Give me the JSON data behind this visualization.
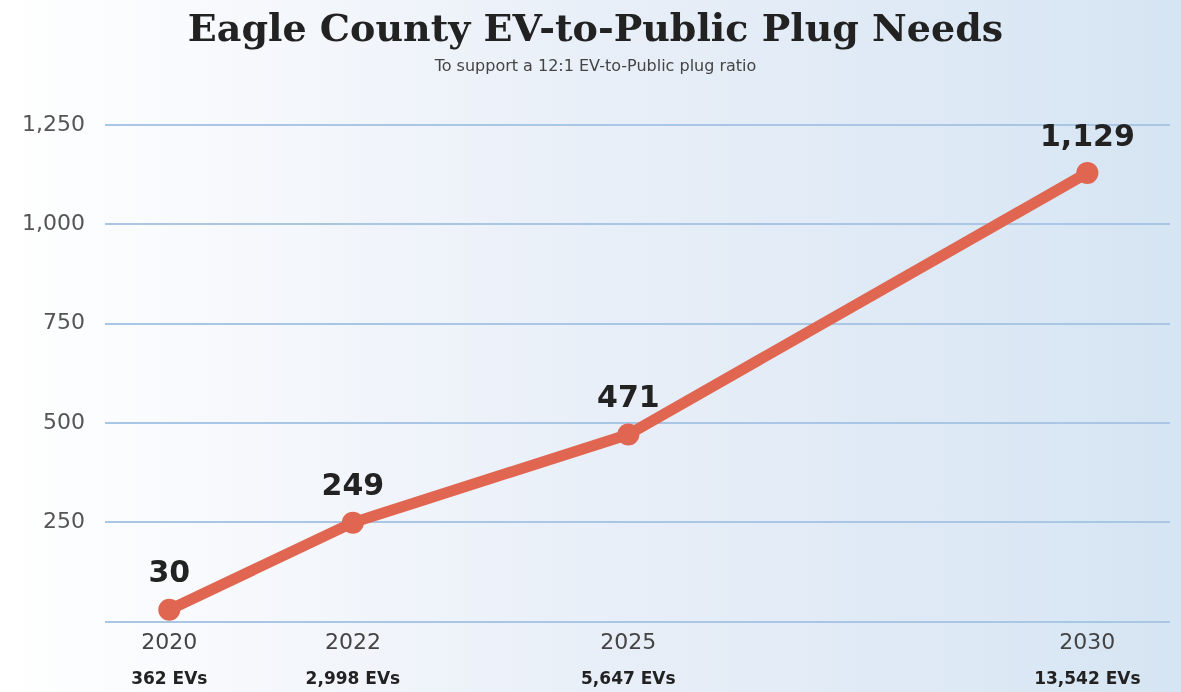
{
  "chart_data": {
    "type": "line",
    "title": "Eagle County EV-to-Public Plug Needs",
    "subtitle": "To support a 12:1 EV-to-Public plug ratio",
    "x": [
      2020,
      2022,
      2025,
      2030
    ],
    "series": [
      {
        "color": "#e06651",
        "values": [
          30,
          249,
          471,
          1129
        ]
      }
    ],
    "value_labels": [
      "30",
      "249",
      "471",
      "1,129"
    ],
    "xlim": [
      2019.3,
      2030.9
    ],
    "xticks": [
      2020,
      2022,
      2025,
      2030
    ],
    "ylim": [
      0,
      1250
    ],
    "yticks": [
      {
        "value": 0,
        "label": null
      },
      {
        "value": 250,
        "label": "250"
      },
      {
        "value": 500,
        "label": "500"
      },
      {
        "value": 750,
        "label": "750"
      },
      {
        "value": 1000,
        "label": "1,000"
      },
      {
        "value": 1250,
        "label": "1,250"
      }
    ],
    "grid": "y",
    "legend": false,
    "marker": "circle",
    "line_style": "solid",
    "annotations": [
      "362 EVs",
      "2,998 EVs",
      "5,647 EVs",
      "13,542 EVs"
    ]
  }
}
